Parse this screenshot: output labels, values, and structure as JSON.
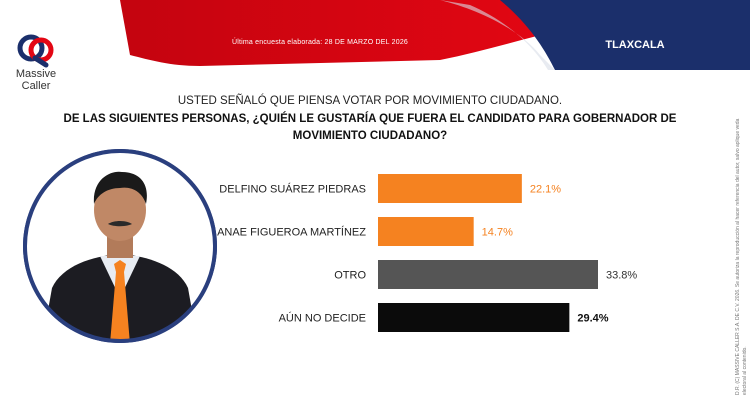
{
  "header": {
    "date_text": "Última encuesta elaborada: 28 DE MARZO DEL 2026",
    "region": "TLAXCALA"
  },
  "logo": {
    "line1": "Massive",
    "line2": "Caller"
  },
  "question": {
    "line1": "USTED SEÑALÓ QUE PIENSA VOTAR POR MOVIMIENTO CIUDADANO.",
    "line2": "DE LAS SIGUIENTES PERSONAS, ¿QUIÉN LE GUSTARÍA QUE FUERA EL CANDIDATO PARA GOBERNADOR DE MOVIMIENTO CIUDADANO?"
  },
  "copyright": "D.R. (C) MASSIVE CALLER S.A. DE C.V. 2026. Se autoriza la reproducción al hacer referencia del autor, salvo aplique veda electoral al contenido.",
  "colors": {
    "brand_red": "#e30613",
    "brand_navy": "#1b2f6b",
    "orange": "#f58220",
    "gray": "#555555",
    "black": "#0b0b0b"
  },
  "chart_data": {
    "type": "bar",
    "orientation": "horizontal",
    "categories": [
      "DELFINO SUÁREZ PIEDRAS",
      "ANAE FIGUEROA MARTÍNEZ",
      "OTRO",
      "AÚN NO DECIDE"
    ],
    "values": [
      22.1,
      14.7,
      33.8,
      29.4
    ],
    "value_labels": [
      "22.1%",
      "14.7%",
      "33.8%",
      "29.4%"
    ],
    "bar_colors": [
      "#f58220",
      "#f58220",
      "#555555",
      "#0b0b0b"
    ],
    "label_colors": [
      "#f58220",
      "#f58220",
      "#333333",
      "#111111"
    ],
    "xlim": [
      0,
      33.8
    ],
    "grid": false,
    "legend": "none"
  }
}
